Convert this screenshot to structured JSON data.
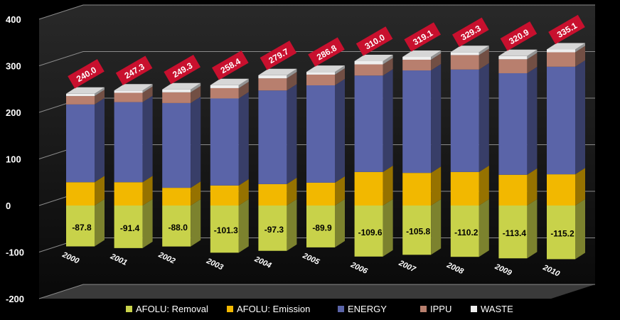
{
  "chart_data": {
    "type": "bar",
    "stacked": true,
    "categories": [
      "2000",
      "2001",
      "2002",
      "2003",
      "2004",
      "2005",
      "2006",
      "2007",
      "2008",
      "2009",
      "2010"
    ],
    "series": [
      {
        "name": "AFOLU: Removal",
        "color": "#c8d24a",
        "values": [
          -87.8,
          -91.4,
          -88.0,
          -101.3,
          -97.3,
          -89.9,
          -109.6,
          -105.8,
          -110.2,
          -113.4,
          -115.2
        ]
      },
      {
        "name": "AFOLU: Emission",
        "color": "#f2b800",
        "values": [
          50,
          50,
          38,
          43,
          46,
          49,
          72,
          70,
          72,
          66,
          67
        ]
      },
      {
        "name": "ENERGY",
        "color": "#5a64a8",
        "values": [
          167,
          172,
          182,
          187,
          201,
          209,
          207,
          220,
          220,
          218,
          231
        ]
      },
      {
        "name": "IPPU",
        "color": "#b87f6e",
        "values": [
          18,
          20,
          23,
          22,
          26,
          23,
          24,
          23,
          31,
          30,
          31
        ]
      },
      {
        "name": "WASTE",
        "color": "#eeeeee",
        "values": [
          5,
          5,
          6.3,
          6.4,
          6.7,
          5.8,
          7,
          6.1,
          6.3,
          6.9,
          6.1
        ]
      }
    ],
    "totals": [
      "240.0",
      "247.3",
      "249.3",
      "258.4",
      "279.7",
      "286.8",
      "310.0",
      "319.1",
      "329.3",
      "320.9",
      "335.1"
    ],
    "removal_labels": [
      "-87.8",
      "-91.4",
      "-88.0",
      "-101.3",
      "-97.3",
      "-89.9",
      "-109.6",
      "-105.8",
      "-110.2",
      "-113.4",
      "-115.2"
    ],
    "y_ticks": [
      "400",
      "300",
      "200",
      "100",
      "0",
      "-100",
      "-200"
    ],
    "ylim": [
      -200,
      400
    ],
    "grid": true,
    "legend_position": "bottom",
    "label_color": "#c8102e"
  }
}
